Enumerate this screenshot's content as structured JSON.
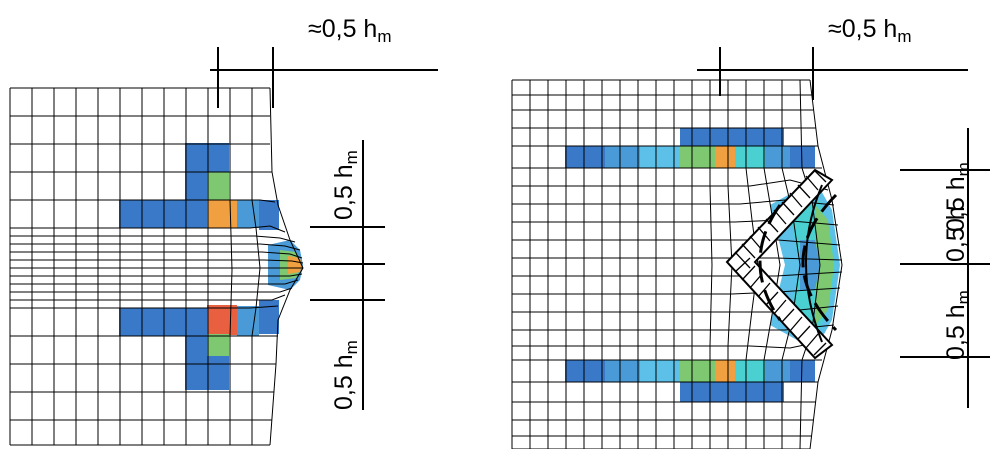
{
  "labels": {
    "left_top": {
      "main": "≈0,5 h",
      "sub": "m"
    },
    "left_upper": {
      "main": "0,5 h",
      "sub": "m"
    },
    "left_lower": {
      "main": "0,5 h",
      "sub": "m"
    },
    "right_top": {
      "main": "≈0,5 h",
      "sub": "m"
    },
    "right_upper": {
      "main": "0,5 h",
      "sub": "m"
    },
    "right_middle": {
      "main": "0,5 h",
      "sub": "m"
    },
    "right_lower": {
      "main": "0,5 h",
      "sub": "m"
    }
  },
  "colors": {
    "grid_line": "#000000",
    "deep_blue": "#3a78c8",
    "blue": "#4a9ad8",
    "light_blue": "#5cc0e8",
    "cyan": "#4ad0d0",
    "green": "#7dc870",
    "yellow": "#e8d040",
    "orange": "#f0a040",
    "red": "#e86040"
  }
}
